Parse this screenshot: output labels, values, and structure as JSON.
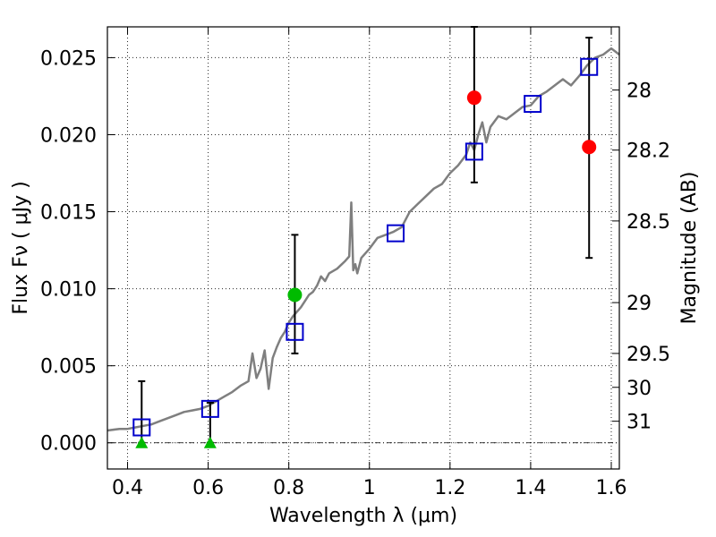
{
  "chart_data": {
    "type": "scatter",
    "title": "",
    "xlabel": "Wavelength  λ (μm)",
    "ylabel": "Flux  Fν  ( μJy )",
    "y2label": "Magnitude (AB)",
    "xlim": [
      0.35,
      1.62
    ],
    "ylim": [
      -0.0017,
      0.027
    ],
    "grid": true,
    "x_ticks": [
      0.4,
      0.6,
      0.8,
      1.0,
      1.2,
      1.4,
      1.6
    ],
    "x_tick_labels": [
      "0.4",
      "0.6",
      "0.8",
      "1",
      "1.2",
      "1.4",
      "1.6"
    ],
    "y_ticks": [
      0.0,
      0.005,
      0.01,
      0.015,
      0.02,
      0.025
    ],
    "y_tick_labels": [
      "0.000",
      "0.005",
      "0.010",
      "0.015",
      "0.020",
      "0.025"
    ],
    "mag_ticks": [
      {
        "label": "28",
        "flux": 0.0229
      },
      {
        "label": "28.2",
        "flux": 0.019
      },
      {
        "label": "28.5",
        "flux": 0.0144
      },
      {
        "label": "29",
        "flux": 0.0091
      },
      {
        "label": "29.5",
        "flux": 0.0058
      },
      {
        "label": "30",
        "flux": 0.0036
      },
      {
        "label": "31",
        "flux": 0.0014
      }
    ],
    "colors": {
      "spectrum": "#7f7f7f",
      "model_box": "#0000cc",
      "red_point": "#ff0000",
      "green_point": "#00bb00",
      "errorbar": "#000000"
    },
    "series": [
      {
        "type": "line",
        "x": [
          0.35,
          0.38,
          0.4,
          0.42,
          0.44,
          0.46,
          0.48,
          0.5,
          0.52,
          0.54,
          0.56,
          0.58,
          0.6,
          0.62,
          0.64,
          0.66,
          0.68,
          0.7,
          0.71,
          0.72,
          0.73,
          0.74,
          0.75,
          0.76,
          0.77,
          0.78,
          0.79,
          0.8,
          0.81,
          0.82,
          0.83,
          0.84,
          0.85,
          0.86,
          0.87,
          0.88,
          0.89,
          0.9,
          0.92,
          0.94,
          0.95,
          0.955,
          0.96,
          0.965,
          0.97,
          0.98,
          1.0,
          1.02,
          1.04,
          1.06,
          1.08,
          1.1,
          1.12,
          1.14,
          1.16,
          1.18,
          1.2,
          1.22,
          1.24,
          1.25,
          1.26,
          1.27,
          1.28,
          1.29,
          1.3,
          1.32,
          1.34,
          1.36,
          1.38,
          1.4,
          1.42,
          1.44,
          1.46,
          1.48,
          1.5,
          1.52,
          1.54,
          1.56,
          1.58,
          1.6,
          1.62
        ],
        "y": [
          0.0008,
          0.0009,
          0.0009,
          0.001,
          0.0011,
          0.0012,
          0.0014,
          0.0016,
          0.0018,
          0.002,
          0.0021,
          0.0022,
          0.0024,
          0.0027,
          0.003,
          0.0033,
          0.0037,
          0.004,
          0.0058,
          0.0042,
          0.0048,
          0.006,
          0.0035,
          0.0055,
          0.0062,
          0.0068,
          0.0072,
          0.0078,
          0.0082,
          0.0085,
          0.0088,
          0.0092,
          0.0096,
          0.0098,
          0.0102,
          0.0108,
          0.0105,
          0.011,
          0.0113,
          0.0118,
          0.0121,
          0.0156,
          0.0112,
          0.0116,
          0.011,
          0.012,
          0.0126,
          0.0133,
          0.0135,
          0.0137,
          0.014,
          0.015,
          0.0155,
          0.016,
          0.0165,
          0.0168,
          0.0175,
          0.018,
          0.0187,
          0.0195,
          0.019,
          0.02,
          0.0208,
          0.0195,
          0.0205,
          0.0212,
          0.021,
          0.0214,
          0.0218,
          0.0219,
          0.0225,
          0.0228,
          0.0232,
          0.0236,
          0.0232,
          0.0238,
          0.0245,
          0.025,
          0.0252,
          0.0256,
          0.0252
        ]
      },
      {
        "type": "square",
        "x": [
          0.435,
          0.605,
          0.815,
          1.065,
          1.26,
          1.405,
          1.545
        ],
        "y": [
          0.001,
          0.0022,
          0.0072,
          0.0136,
          0.0189,
          0.022,
          0.0244
        ]
      },
      {
        "type": "circle",
        "color": "red",
        "x": [
          1.26,
          1.545
        ],
        "y": [
          0.0224,
          0.0192
        ],
        "y_err_low": [
          0.0169,
          0.012
        ],
        "y_err_high": [
          0.028,
          0.0263
        ]
      },
      {
        "type": "circle",
        "color": "green",
        "x": [
          0.815
        ],
        "y": [
          0.0096
        ],
        "y_err_low": [
          0.0058
        ],
        "y_err_high": [
          0.0135
        ]
      },
      {
        "type": "triangle",
        "color": "green",
        "x": [
          0.435,
          0.605
        ],
        "y": [
          0.0,
          0.0
        ],
        "y_err_low": [
          0.0,
          0.0
        ],
        "y_err_high": [
          0.004,
          0.0026
        ]
      }
    ],
    "zero_line": 0.0
  }
}
